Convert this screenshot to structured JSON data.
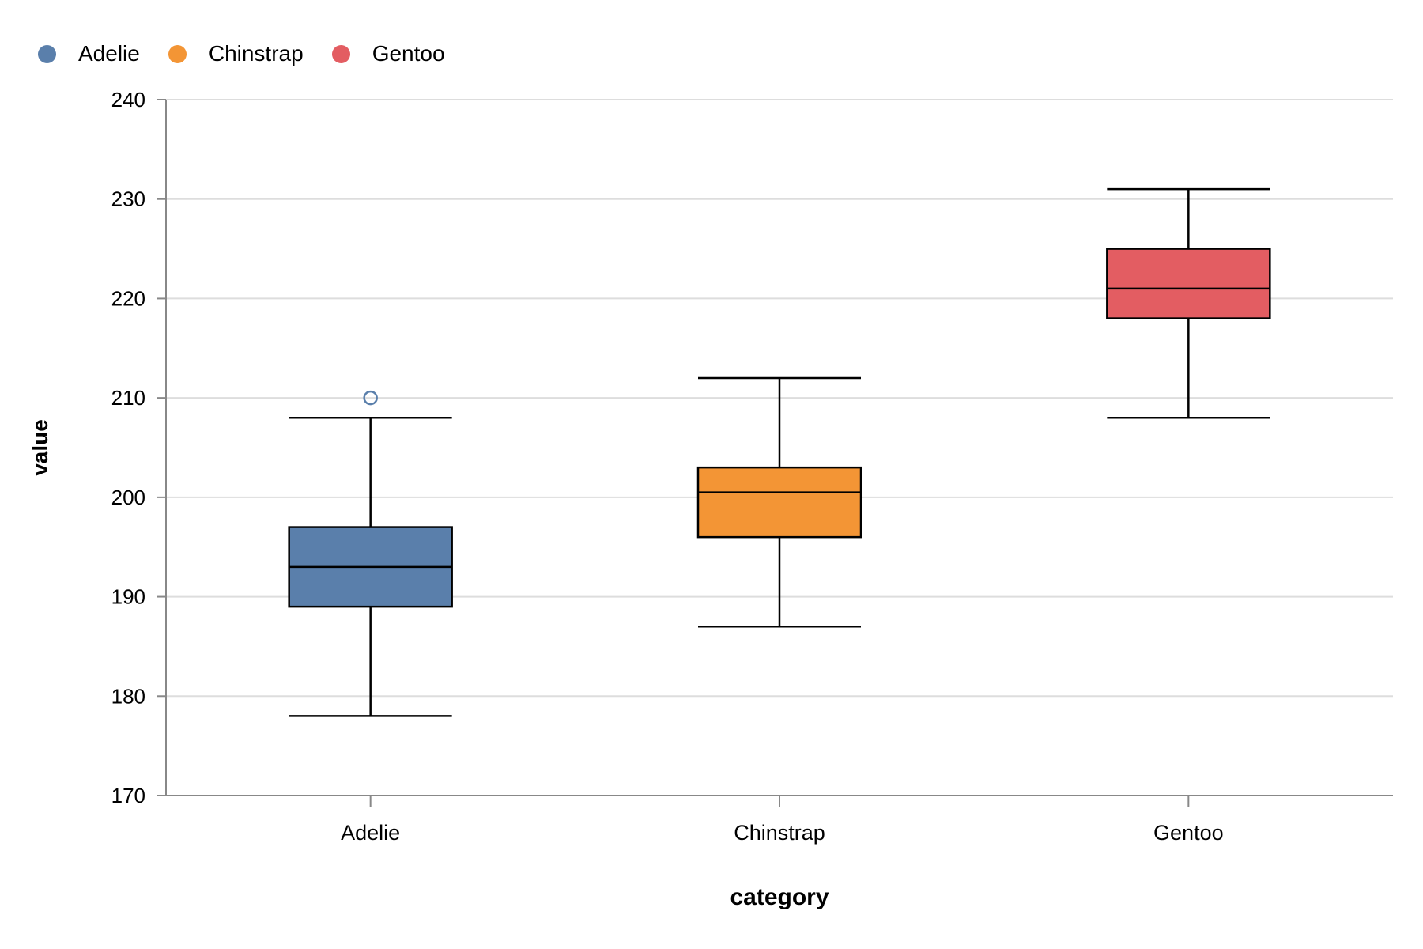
{
  "chart_data": {
    "type": "boxplot",
    "xlabel": "category",
    "ylabel": "value",
    "ylim": [
      170,
      240
    ],
    "yticks": [
      170,
      180,
      190,
      200,
      210,
      220,
      230,
      240
    ],
    "grid": true,
    "legend_position": "top-left",
    "categories": [
      "Adelie",
      "Chinstrap",
      "Gentoo"
    ],
    "series": [
      {
        "name": "Adelie",
        "color": "#5a7fab",
        "min": 178,
        "q1": 189,
        "median": 193,
        "q3": 197,
        "max": 208,
        "outliers": [
          210
        ]
      },
      {
        "name": "Chinstrap",
        "color": "#f39535",
        "min": 187,
        "q1": 196,
        "median": 200.5,
        "q3": 203,
        "max": 212,
        "outliers": []
      },
      {
        "name": "Gentoo",
        "color": "#e35d62",
        "min": 208,
        "q1": 218,
        "median": 221,
        "q3": 225,
        "max": 231,
        "outliers": []
      }
    ]
  }
}
